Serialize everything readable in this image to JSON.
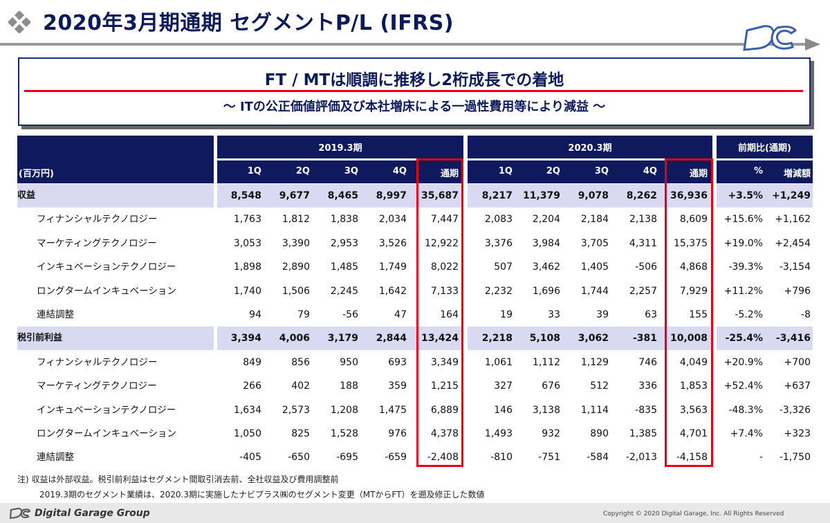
{
  "header": {
    "title": "2020年3月期通期 セグメントP/L (IFRS)"
  },
  "headline": {
    "main": "FT / MTは順調に推移し2桁成長での着地",
    "sub": "～ ITの公正価値評価及び本社増床による一過性費用等により減益 ～"
  },
  "table": {
    "unit_label": "(百万円)",
    "period_2019": "2019.3期",
    "period_2020": "2020.3期",
    "period_yoy": "前期比(通期)",
    "quarter_labels": [
      "1Q",
      "2Q",
      "3Q",
      "4Q",
      "通期"
    ],
    "yoy_labels": [
      "%",
      "増減額"
    ],
    "rows": [
      {
        "label": "収益",
        "total": true,
        "v": [
          "8,548",
          "9,677",
          "8,465",
          "8,997",
          "35,687",
          "8,217",
          "11,379",
          "9,078",
          "8,262",
          "36,936",
          "+3.5%",
          "+1,249"
        ]
      },
      {
        "label": "フィナンシャルテクノロジー",
        "total": false,
        "v": [
          "1,763",
          "1,812",
          "1,838",
          "2,034",
          "7,447",
          "2,083",
          "2,204",
          "2,184",
          "2,138",
          "8,609",
          "+15.6%",
          "+1,162"
        ]
      },
      {
        "label": "マーケティングテクノロジー",
        "total": false,
        "v": [
          "3,053",
          "3,390",
          "2,953",
          "3,526",
          "12,922",
          "3,376",
          "3,984",
          "3,705",
          "4,311",
          "15,375",
          "+19.0%",
          "+2,454"
        ]
      },
      {
        "label": "インキュベーションテクノロジー",
        "total": false,
        "v": [
          "1,898",
          "2,890",
          "1,485",
          "1,749",
          "8,022",
          "507",
          "3,462",
          "1,405",
          "-506",
          "4,868",
          "-39.3%",
          "-3,154"
        ]
      },
      {
        "label": "ロングタームインキュベーション",
        "total": false,
        "v": [
          "1,740",
          "1,506",
          "2,245",
          "1,642",
          "7,133",
          "2,232",
          "1,696",
          "1,744",
          "2,257",
          "7,929",
          "+11.2%",
          "+796"
        ]
      },
      {
        "label": "連結調整",
        "total": false,
        "v": [
          "94",
          "79",
          "-56",
          "47",
          "164",
          "19",
          "33",
          "39",
          "63",
          "155",
          "-5.2%",
          "-8"
        ]
      },
      {
        "label": "税引前利益",
        "total": true,
        "v": [
          "3,394",
          "4,006",
          "3,179",
          "2,844",
          "13,424",
          "2,218",
          "5,108",
          "3,062",
          "-381",
          "10,008",
          "-25.4%",
          "-3,416"
        ]
      },
      {
        "label": "フィナンシャルテクノロジー",
        "total": false,
        "v": [
          "849",
          "856",
          "950",
          "693",
          "3,349",
          "1,061",
          "1,112",
          "1,129",
          "746",
          "4,049",
          "+20.9%",
          "+700"
        ]
      },
      {
        "label": "マーケティングテクノロジー",
        "total": false,
        "v": [
          "266",
          "402",
          "188",
          "359",
          "1,215",
          "327",
          "676",
          "512",
          "336",
          "1,853",
          "+52.4%",
          "+637"
        ]
      },
      {
        "label": "インキュベーションテクノロジー",
        "total": false,
        "v": [
          "1,634",
          "2,573",
          "1,208",
          "1,475",
          "6,889",
          "146",
          "3,138",
          "1,114",
          "-835",
          "3,563",
          "-48.3%",
          "-3,326"
        ]
      },
      {
        "label": "ロングタームインキュベーション",
        "total": false,
        "v": [
          "1,050",
          "825",
          "1,528",
          "976",
          "4,378",
          "1,493",
          "932",
          "890",
          "1,385",
          "4,701",
          "+7.4%",
          "+323"
        ]
      },
      {
        "label": "連結調整",
        "total": false,
        "v": [
          "-405",
          "-650",
          "-695",
          "-659",
          "-2,408",
          "-810",
          "-751",
          "-584",
          "-2,013",
          "-4,158",
          "-",
          "-1,750"
        ]
      }
    ]
  },
  "notes": {
    "line1": "注) 収益は外部収益。税引前利益はセグメント間取引消去前、全社収益及び費用調整前",
    "line2": "2019.3期のセグメント業績は、2020.3期に実施したナビプラス㈱のセグメント変更（MTからFT）を遡及修正した数値"
  },
  "footer": {
    "brand": "Digital Garage Group",
    "copyright": "Copyright © 2020 Digital Garage, Inc. All Rights Reserved"
  },
  "colors": {
    "navy": "#0f1a5e",
    "total_row_bg": "#d9d9f1",
    "highlight_red": "#e60012"
  }
}
